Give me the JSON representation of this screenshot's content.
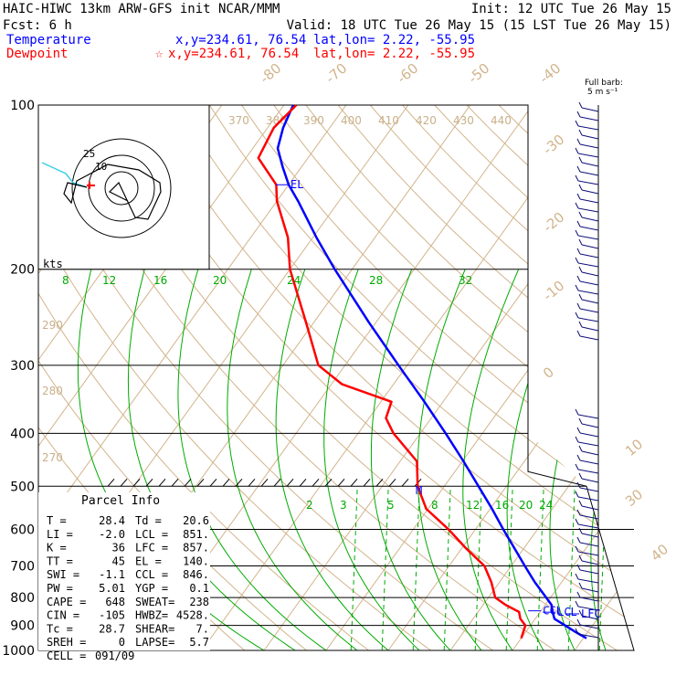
{
  "header": {
    "line1_left": "HAIC-HIWC 13km ARW-GFS init  NCAR/MMM",
    "line1_right": "Init: 12 UTC Tue 26 May 15",
    "line2_left": "Fcst:   6 h",
    "line2_right": "Valid: 18 UTC Tue 26 May 15 (15 LST Tue 26 May 15)",
    "temperature_label": "Temperature",
    "temperature_xy": "x,y=234.61, 76.54",
    "temperature_latlon": "lat,lon=  2.22, -55.95",
    "dewpoint_label": "Dewpoint",
    "dewpoint_marker": "☆",
    "dewpoint_xy": "x,y=234.61, 76.54",
    "dewpoint_latlon": "lat,lon=  2.22, -55.95"
  },
  "barb_header": [
    "Full barb:",
    "5 m s⁻¹"
  ],
  "hodograph": {
    "units_label": "kts",
    "ring_labels": [
      "25",
      "10"
    ]
  },
  "parcel_info": {
    "title": "Parcel Info",
    "rows": [
      [
        "T  =",
        "28.4",
        "Td  =",
        "20.6"
      ],
      [
        "LI =",
        "-2.0",
        "LCL =",
        "851."
      ],
      [
        "K  =",
        "36",
        "LFC =",
        "857."
      ],
      [
        "TT =",
        "45",
        "EL  =",
        "140."
      ],
      [
        "SWI =",
        "-1.1",
        "CCL =",
        "846."
      ],
      [
        "PW =",
        "5.01",
        "YGP =",
        "0.1"
      ],
      [
        "CAPE =",
        "648",
        "SWEAT=",
        "238"
      ],
      [
        "CIN =",
        "-105",
        "HWBZ=",
        "4528."
      ],
      [
        "Tc =",
        "28.7",
        "SHEAR=",
        "7."
      ],
      [
        "SREH =",
        "0",
        "LAPSE=",
        "5.7"
      ],
      [
        "CELL =",
        "091/09",
        "",
        ""
      ]
    ]
  },
  "chart_data": {
    "type": "line",
    "subtype": "skew-T log-p sounding",
    "y_axis": {
      "label": "pressure (hPa)",
      "scale": "log",
      "range": [
        1000,
        100
      ],
      "ticks": [
        100,
        200,
        300,
        400,
        500,
        600,
        700,
        800,
        900,
        1000
      ]
    },
    "x_axis": {
      "label": "temperature (°C, skewed)",
      "range": [
        -40,
        40
      ]
    },
    "isotherm_labels": [
      -80,
      -70,
      -60,
      -50,
      -40,
      -30,
      -20,
      -10,
      0,
      10,
      20,
      30,
      40
    ],
    "dry_adiabat_labels": [
      370,
      380,
      390,
      400,
      410,
      420,
      430,
      440,
      300,
      290,
      280,
      270
    ],
    "mixing_ratio_labels_upper": [
      8,
      12,
      16,
      20,
      24,
      28,
      32
    ],
    "mixing_ratio_labels_lower": [
      2,
      3,
      5,
      8,
      12,
      16,
      20,
      24
    ],
    "levels_marked": [
      "EL",
      "CCL",
      "LCL",
      "LFC",
      "M"
    ],
    "series": [
      {
        "name": "Temperature",
        "color": "#0000ff",
        "points": [
          [
            950,
            30.5
          ],
          [
            925,
            28.0
          ],
          [
            900,
            25.6
          ],
          [
            875,
            23.1
          ],
          [
            850,
            22.0
          ],
          [
            825,
            21.0
          ],
          [
            800,
            19.3
          ],
          [
            750,
            15.7
          ],
          [
            700,
            12.2
          ],
          [
            650,
            8.5
          ],
          [
            600,
            4.5
          ],
          [
            550,
            0.3
          ],
          [
            500,
            -4.5
          ],
          [
            450,
            -9.8
          ],
          [
            400,
            -15.9
          ],
          [
            350,
            -23.0
          ],
          [
            300,
            -31.4
          ],
          [
            250,
            -41.2
          ],
          [
            200,
            -52.8
          ],
          [
            175,
            -59.4
          ],
          [
            150,
            -66.6
          ],
          [
            140,
            -70.0
          ],
          [
            130,
            -73.0
          ],
          [
            120,
            -76.0
          ],
          [
            110,
            -77.5
          ],
          [
            100,
            -78.5
          ]
        ]
      },
      {
        "name": "Dewpoint",
        "color": "#ff0000",
        "points": [
          [
            950,
            20.0
          ],
          [
            925,
            19.6
          ],
          [
            900,
            19.2
          ],
          [
            875,
            17.6
          ],
          [
            850,
            16.6
          ],
          [
            825,
            13.6
          ],
          [
            800,
            11.1
          ],
          [
            750,
            8.7
          ],
          [
            700,
            5.7
          ],
          [
            650,
            0.7
          ],
          [
            600,
            -4.3
          ],
          [
            550,
            -10.3
          ],
          [
            500,
            -14.3
          ],
          [
            450,
            -17.3
          ],
          [
            400,
            -24.3
          ],
          [
            375,
            -27.3
          ],
          [
            350,
            -28.3
          ],
          [
            325,
            -38.3
          ],
          [
            300,
            -44.3
          ],
          [
            250,
            -51.3
          ],
          [
            200,
            -60.0
          ],
          [
            175,
            -64.0
          ],
          [
            150,
            -70.0
          ],
          [
            140,
            -72.0
          ],
          [
            125,
            -78.0
          ],
          [
            110,
            -79.0
          ],
          [
            100,
            -78.0
          ]
        ]
      }
    ]
  },
  "colors": {
    "temperature": "#0000ff",
    "dewpoint": "#ff0000",
    "isotherm": "#d2b48c",
    "mixing_ratio": "#00aa00",
    "barb": "#0a0a7a"
  }
}
